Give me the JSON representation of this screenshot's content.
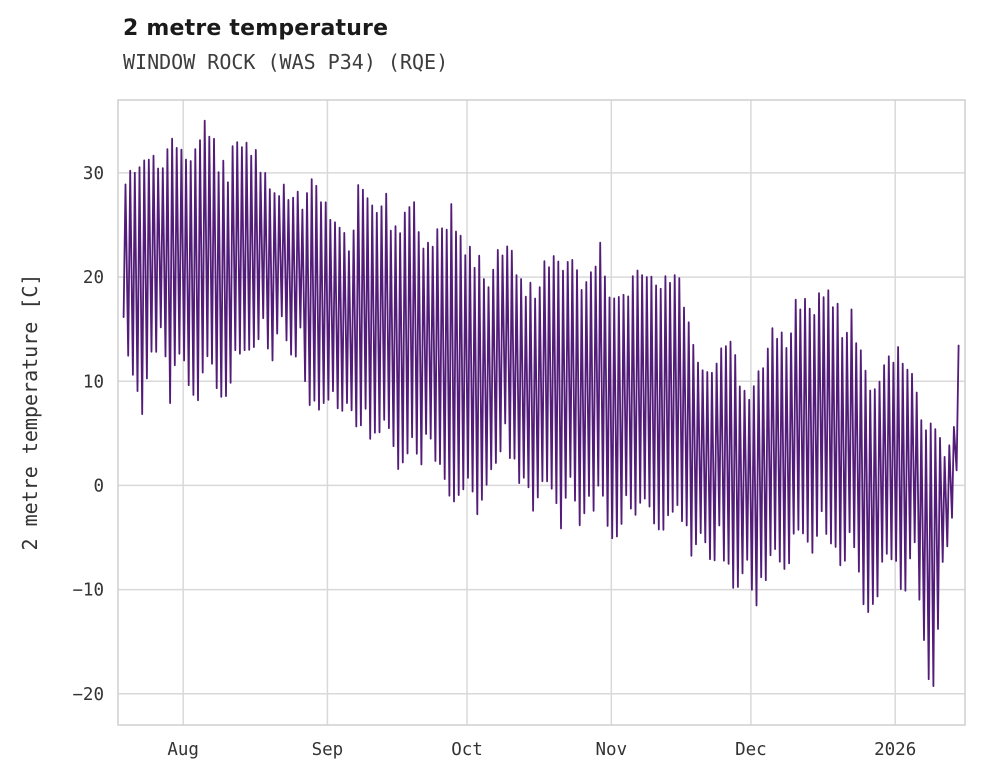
{
  "chart": {
    "title": "2 metre temperature",
    "subtitle": "WINDOW ROCK (WAS P34) (RQE)",
    "ylabel": "2 metre temperature [C]"
  },
  "chart_data": {
    "type": "line",
    "title": "2 metre temperature",
    "subtitle": "WINDOW ROCK (WAS P34) (RQE)",
    "xlabel": "",
    "ylabel": "2 metre temperature [C]",
    "grid": true,
    "legend": "none",
    "line_color": "#521c78",
    "grid_color": "#d9d9d9",
    "frame_color": "#cfcfcf",
    "ylim": [
      -23,
      37
    ],
    "yticks": [
      -20,
      -10,
      0,
      10,
      20,
      30
    ],
    "xlim": [
      0,
      182
    ],
    "xticks": [
      {
        "pos": 14,
        "label": "Aug"
      },
      {
        "pos": 45,
        "label": "Sep"
      },
      {
        "pos": 75,
        "label": "Oct"
      },
      {
        "pos": 106,
        "label": "Nov"
      },
      {
        "pos": 136,
        "label": "Dec"
      },
      {
        "pos": 167,
        "label": "2026"
      }
    ],
    "x_note": "x positions are day indices across the displayed window; axis shows month tick labels only",
    "series_note": "single series of 2 m temperature with strong diurnal oscillation; stored as [dayIndex, dailyMin, dailyMax] envelope read from the plot, rendered as a daily zigzag",
    "daily_envelope": [
      [
        1,
        16,
        29
      ],
      [
        3,
        10,
        30
      ],
      [
        5,
        8,
        31
      ],
      [
        7,
        12,
        32
      ],
      [
        9,
        14,
        30
      ],
      [
        11,
        9,
        33
      ],
      [
        13,
        12,
        33
      ],
      [
        15,
        10,
        31
      ],
      [
        17,
        8,
        34
      ],
      [
        19,
        13,
        34
      ],
      [
        21,
        9,
        31
      ],
      [
        23,
        8,
        30
      ],
      [
        25,
        12,
        33
      ],
      [
        27,
        14,
        32
      ],
      [
        29,
        13,
        32
      ],
      [
        31,
        15,
        29
      ],
      [
        33,
        13,
        27
      ],
      [
        35,
        16,
        29
      ],
      [
        37,
        12,
        28
      ],
      [
        39,
        14,
        27
      ],
      [
        41,
        8,
        29
      ],
      [
        43,
        7,
        28
      ],
      [
        45,
        9,
        26
      ],
      [
        47,
        7,
        24
      ],
      [
        49,
        8,
        23
      ],
      [
        51,
        6,
        28
      ],
      [
        53,
        7,
        27
      ],
      [
        55,
        4,
        26
      ],
      [
        57,
        6,
        27
      ],
      [
        59,
        3,
        24
      ],
      [
        61,
        1,
        26
      ],
      [
        63,
        4,
        27
      ],
      [
        65,
        3,
        23
      ],
      [
        67,
        5,
        24
      ],
      [
        69,
        2,
        25
      ],
      [
        71,
        0,
        26
      ],
      [
        73,
        -1,
        24
      ],
      [
        75,
        1,
        22
      ],
      [
        77,
        -2,
        21
      ],
      [
        79,
        0,
        20
      ],
      [
        81,
        3,
        22
      ],
      [
        83,
        5,
        22
      ],
      [
        85,
        2,
        21
      ],
      [
        87,
        0,
        19
      ],
      [
        89,
        -2,
        18
      ],
      [
        91,
        1,
        21
      ],
      [
        93,
        -1,
        22
      ],
      [
        95,
        -3,
        20
      ],
      [
        97,
        0,
        21
      ],
      [
        99,
        -4,
        19
      ],
      [
        101,
        -2,
        20
      ],
      [
        103,
        -1,
        23
      ],
      [
        105,
        -3,
        19
      ],
      [
        107,
        -5,
        18
      ],
      [
        109,
        -2,
        19
      ],
      [
        111,
        -4,
        20
      ],
      [
        113,
        -1,
        20
      ],
      [
        115,
        -3,
        19
      ],
      [
        117,
        -5,
        20
      ],
      [
        119,
        -2,
        20
      ],
      [
        121,
        -4,
        18
      ],
      [
        123,
        -6,
        13
      ],
      [
        125,
        -4,
        12
      ],
      [
        127,
        -7,
        11
      ],
      [
        129,
        -5,
        13
      ],
      [
        131,
        -8,
        14
      ],
      [
        133,
        -10,
        10
      ],
      [
        135,
        -7,
        9
      ],
      [
        137,
        -11,
        11
      ],
      [
        139,
        -8,
        13
      ],
      [
        141,
        -6,
        15
      ],
      [
        143,
        -9,
        13
      ],
      [
        145,
        -5,
        17
      ],
      [
        147,
        -4,
        18
      ],
      [
        149,
        -7,
        17
      ],
      [
        151,
        -3,
        18
      ],
      [
        153,
        -6,
        18
      ],
      [
        155,
        -8,
        15
      ],
      [
        157,
        -5,
        16
      ],
      [
        159,
        -9,
        12
      ],
      [
        161,
        -12,
        10
      ],
      [
        163,
        -10,
        9
      ],
      [
        165,
        -6,
        12
      ],
      [
        167,
        -8,
        13
      ],
      [
        169,
        -10,
        12
      ],
      [
        171,
        -5,
        8
      ],
      [
        173,
        -16,
        6
      ],
      [
        175,
        -19.5,
        5
      ],
      [
        177,
        -8,
        3
      ],
      [
        179,
        -3,
        6
      ],
      [
        180,
        2,
        13
      ]
    ]
  }
}
